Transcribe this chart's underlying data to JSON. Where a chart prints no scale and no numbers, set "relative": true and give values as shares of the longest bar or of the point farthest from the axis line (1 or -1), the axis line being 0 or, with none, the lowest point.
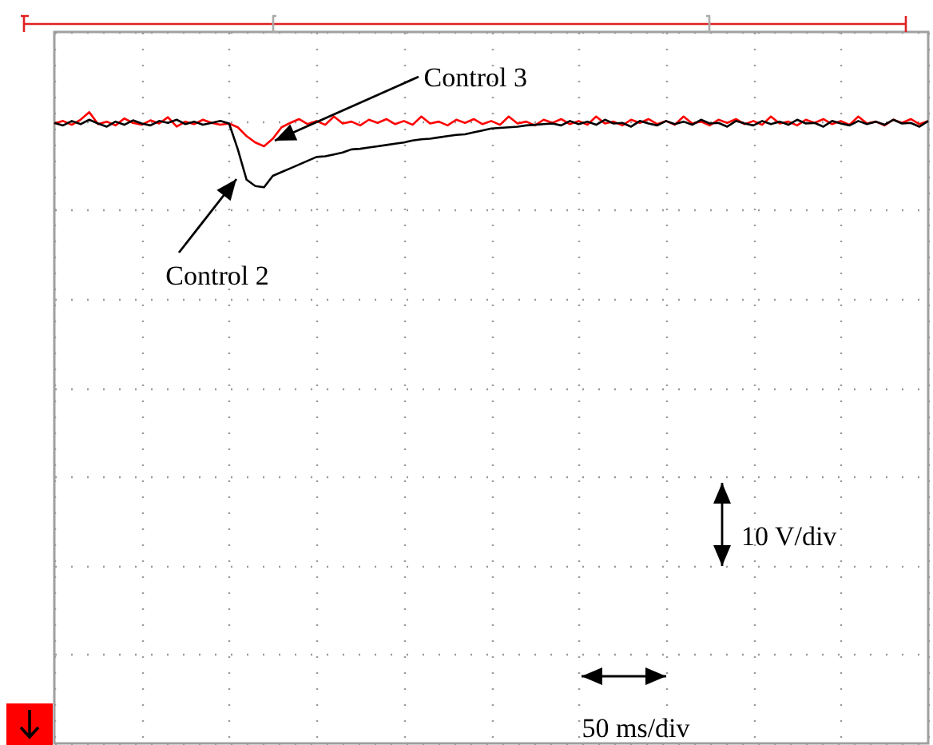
{
  "chart_data": {
    "type": "line",
    "relative": true,
    "grid": true,
    "categories": [
      null,
      null,
      null,
      null,
      null,
      null,
      null,
      null,
      null,
      null,
      null,
      null,
      null,
      null,
      null,
      null,
      null,
      null,
      null,
      null,
      null,
      null,
      null,
      null,
      null,
      null,
      null,
      null,
      null,
      null,
      null,
      null,
      null,
      null,
      null,
      null,
      null,
      null,
      null,
      null,
      null,
      null,
      null,
      null,
      null,
      null,
      null,
      null,
      null,
      null,
      null,
      null,
      null,
      null,
      null,
      null,
      null,
      null,
      null,
      null,
      null,
      null,
      null,
      null,
      null,
      null,
      null,
      null,
      null,
      null,
      null,
      null,
      null,
      null,
      null,
      null,
      null,
      null,
      null,
      null,
      null,
      null,
      null,
      null,
      null,
      null,
      null,
      null,
      null,
      null,
      null,
      null,
      null,
      null,
      null,
      null,
      null,
      null,
      null,
      null,
      null
    ],
    "series": [
      {
        "name": "Control 3",
        "color": "#ff0000",
        "values": [
          0.982,
          0.986,
          0.98,
          0.988,
          1,
          0.981,
          0.985,
          0.979,
          0.99,
          0.983,
          0.98,
          0.987,
          0.982,
          0.992,
          0.977,
          0.985,
          0.981,
          0.988,
          0.983,
          0.98,
          0.982,
          0.976,
          0.962,
          0.952,
          0.946,
          0.958,
          0.976,
          0.983,
          0.989,
          0.981,
          0.986,
          0.98,
          0.993,
          0.982,
          0.985,
          0.979,
          0.988,
          0.983,
          0.989,
          0.981,
          0.986,
          0.98,
          0.993,
          0.982,
          0.985,
          0.979,
          0.988,
          0.983,
          0.989,
          0.981,
          0.986,
          0.98,
          0.993,
          0.982,
          0.985,
          0.979,
          0.988,
          0.983,
          0.989,
          0.981,
          0.986,
          0.98,
          0.993,
          0.982,
          0.985,
          0.979,
          0.988,
          0.983,
          0.989,
          0.981,
          0.986,
          0.98,
          0.993,
          0.982,
          0.985,
          0.979,
          0.988,
          0.983,
          0.989,
          0.981,
          0.986,
          0.98,
          0.993,
          0.982,
          0.985,
          0.979,
          0.988,
          0.983,
          0.989,
          0.981,
          0.986,
          0.98,
          0.993,
          0.982,
          0.985,
          0.979,
          0.988,
          0.983,
          0.989,
          0.981,
          0.986
        ]
      },
      {
        "name": "Control 2",
        "color": "#000000",
        "values": [
          0.983,
          0.979,
          0.986,
          0.981,
          0.988,
          0.982,
          0.977,
          0.985,
          0.98,
          0.987,
          0.982,
          0.979,
          0.986,
          0.983,
          0.988,
          0.981,
          0.985,
          0.98,
          0.983,
          0.986,
          0.982,
          0.941,
          0.893,
          0.883,
          0.881,
          0.899,
          0.905,
          0.911,
          0.917,
          0.923,
          0.929,
          0.93,
          0.933,
          0.936,
          0.941,
          0.942,
          0.944,
          0.946,
          0.948,
          0.95,
          0.952,
          0.955,
          0.957,
          0.958,
          0.96,
          0.962,
          0.964,
          0.965,
          0.968,
          0.971,
          0.974,
          0.975,
          0.976,
          0.977,
          0.979,
          0.98,
          0.981,
          0.982,
          0.979,
          0.986,
          0.981,
          0.985,
          0.98,
          0.988,
          0.982,
          0.983,
          0.977,
          0.986,
          0.982,
          0.979,
          0.986,
          0.981,
          0.985,
          0.98,
          0.988,
          0.982,
          0.983,
          0.977,
          0.986,
          0.982,
          0.979,
          0.986,
          0.981,
          0.985,
          0.98,
          0.988,
          0.982,
          0.983,
          0.977,
          0.986,
          0.982,
          0.979,
          0.986,
          0.981,
          0.985,
          0.98,
          0.988,
          0.982,
          0.983,
          0.977,
          0.986
        ]
      }
    ],
    "annotations": [
      "10 V/div",
      "50 ms/div"
    ]
  }
}
